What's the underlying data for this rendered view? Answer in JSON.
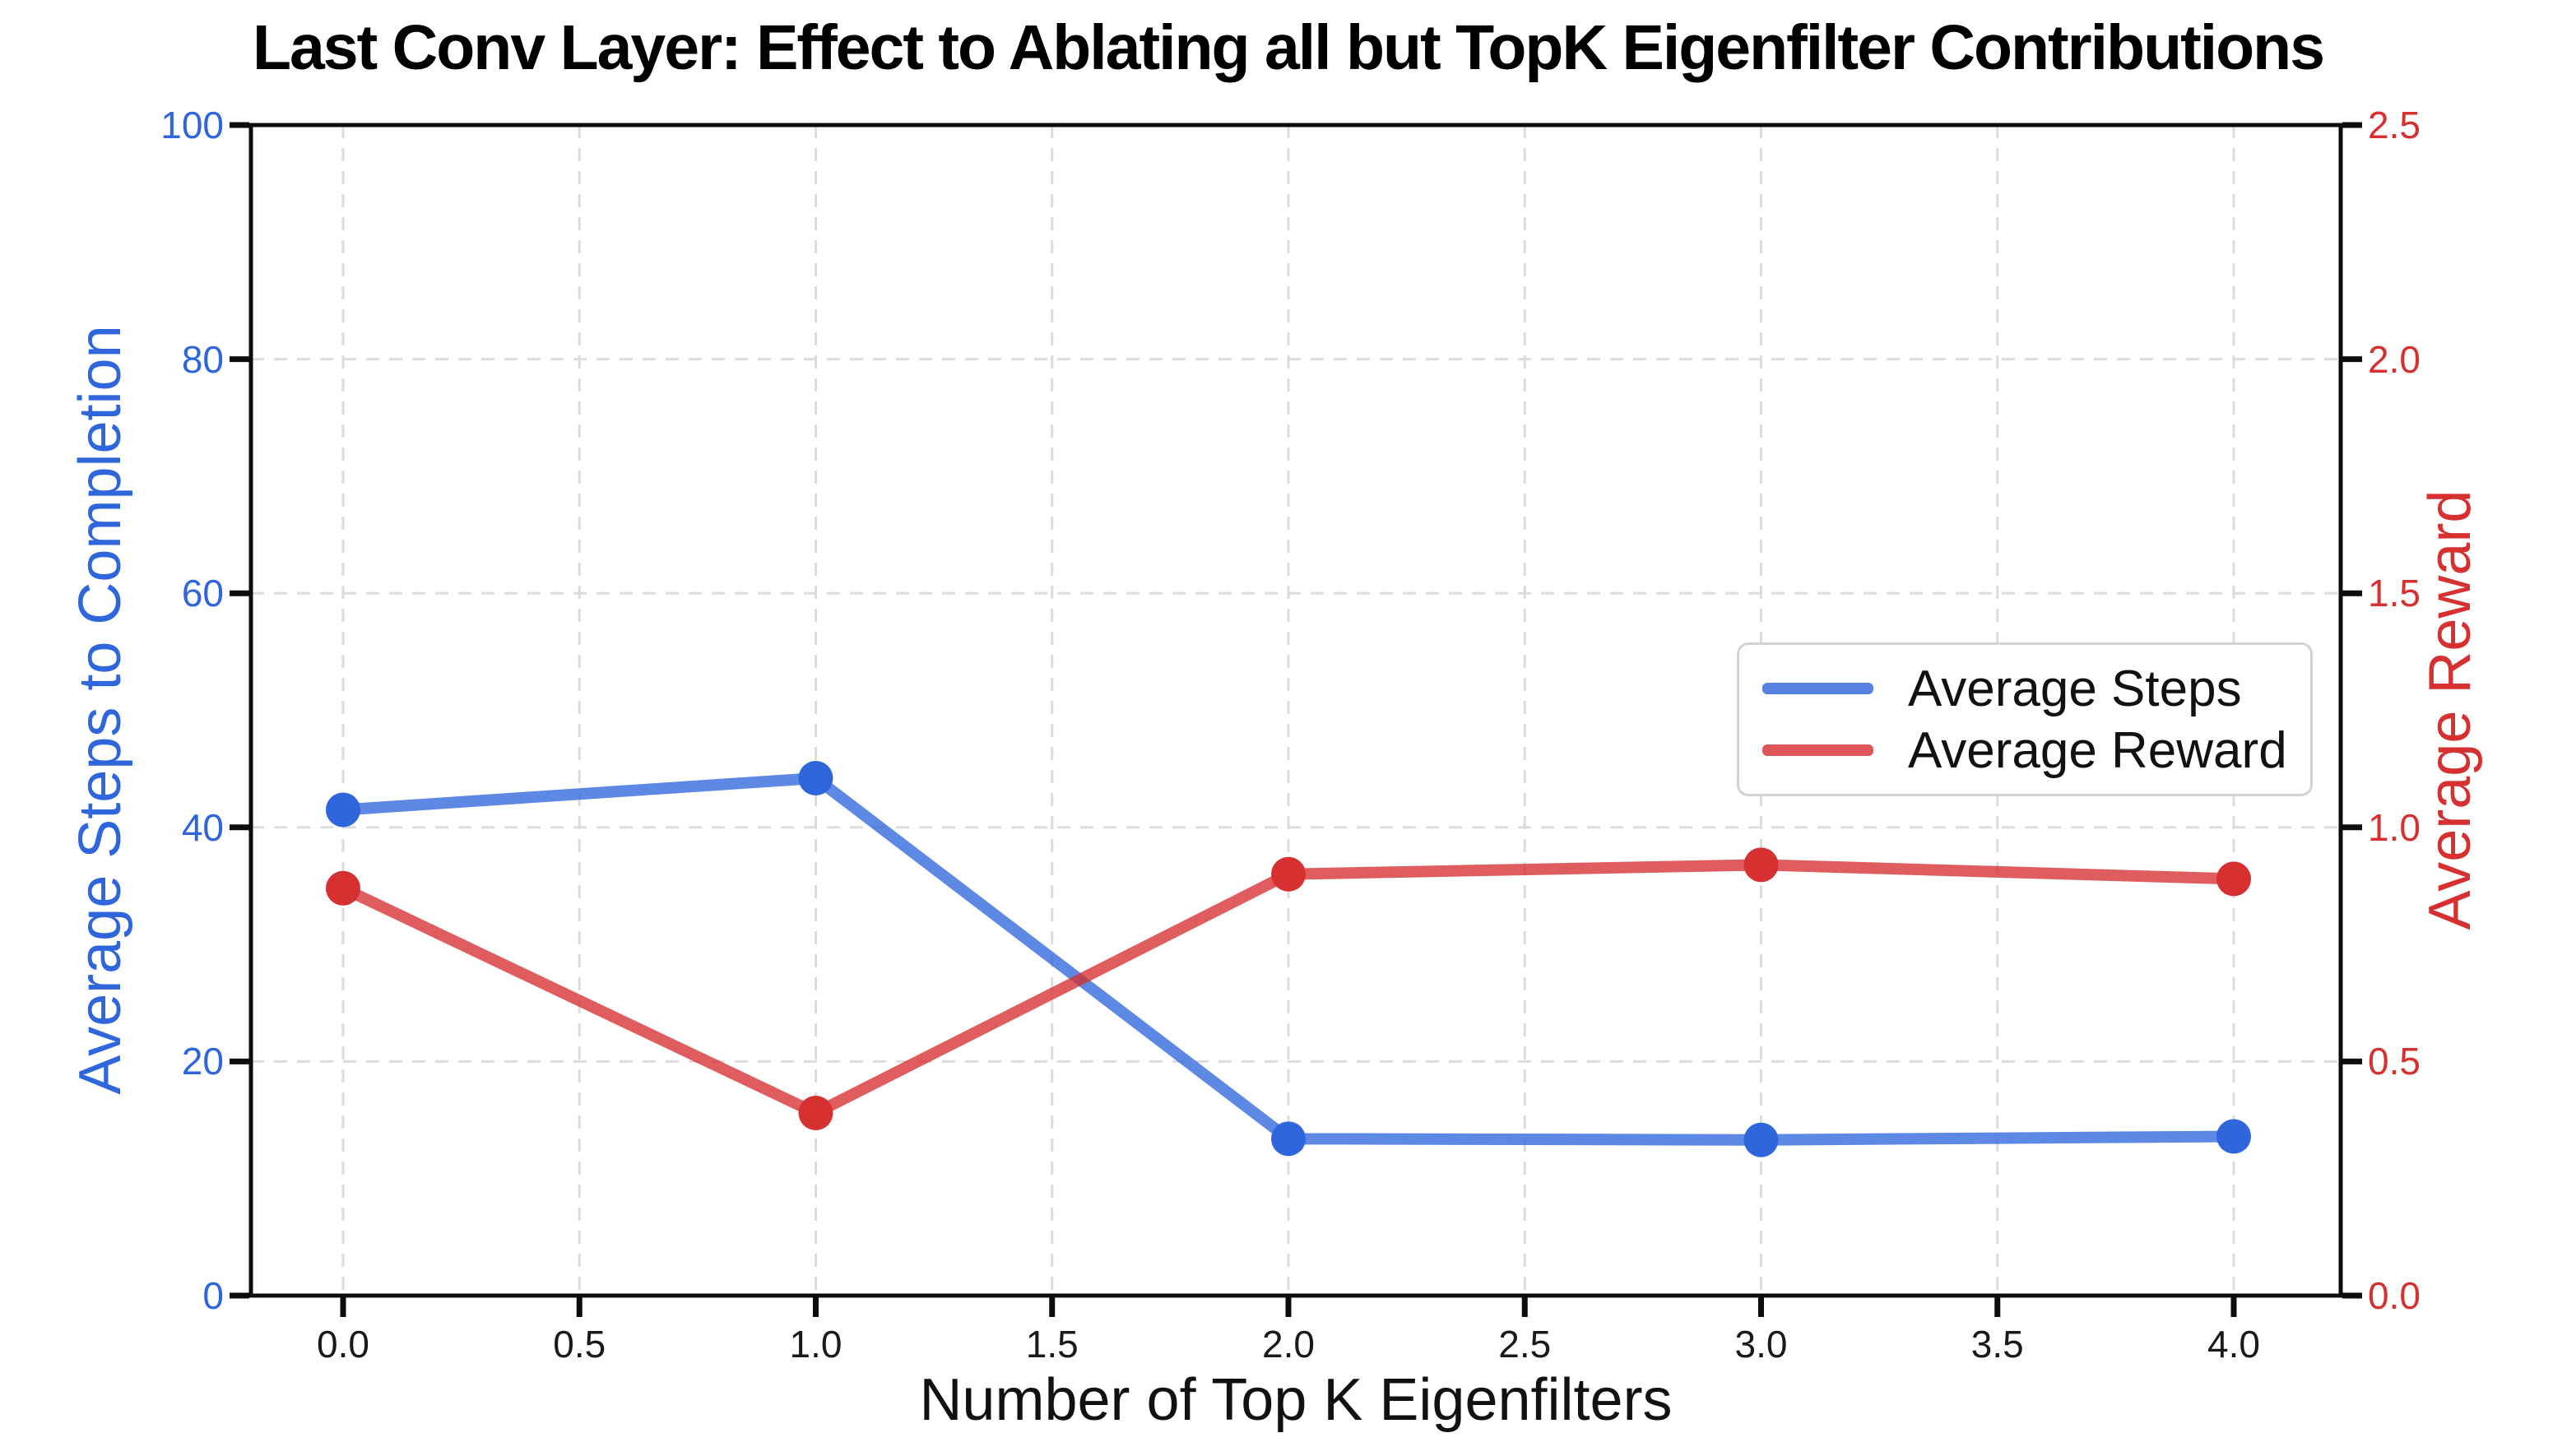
{
  "chart_data": {
    "type": "line",
    "title": "Last Conv Layer: Effect to Ablating all but TopK Eigenfilter Contributions",
    "xlabel": "Number of Top K Eigenfilters",
    "x": [
      0,
      1,
      2,
      3,
      4
    ],
    "x_tick_values": [
      0,
      0.5,
      1,
      1.5,
      2,
      2.5,
      3,
      3.5,
      4
    ],
    "x_tick_labels": [
      "0.0",
      "0.5",
      "1.0",
      "1.5",
      "2.0",
      "2.5",
      "3.0",
      "3.5",
      "4.0"
    ],
    "axes": {
      "left": {
        "label": "Average Steps to Completion",
        "color": "#2f66db",
        "range": [
          0,
          100
        ],
        "tick_values": [
          0,
          20,
          40,
          60,
          80,
          100
        ],
        "tick_labels": [
          "0",
          "20",
          "40",
          "60",
          "80",
          "100"
        ]
      },
      "right": {
        "label": "Average Reward",
        "color": "#d63031",
        "range": [
          0,
          2.5
        ],
        "tick_values": [
          0,
          0.5,
          1,
          1.5,
          2,
          2.5
        ],
        "tick_labels": [
          "0.0",
          "0.5",
          "1.0",
          "1.5",
          "2.0",
          "2.5"
        ]
      }
    },
    "series": [
      {
        "name": "Average Steps",
        "axis": "left",
        "color": "#2f66db",
        "values": [
          41.5,
          44.2,
          13.4,
          13.3,
          13.6
        ]
      },
      {
        "name": "Average Reward",
        "axis": "right",
        "color": "#d63031",
        "values": [
          0.87,
          0.39,
          0.9,
          0.92,
          0.89
        ]
      }
    ],
    "legend": {
      "position": "center-right",
      "entries": [
        "Average Steps",
        "Average Reward"
      ]
    },
    "grid": true,
    "style": {
      "grid_color": "#dcdcdc",
      "spine_color": "#0d0d0d",
      "tick_color": "#0d0d0d",
      "background": "#ffffff"
    }
  }
}
